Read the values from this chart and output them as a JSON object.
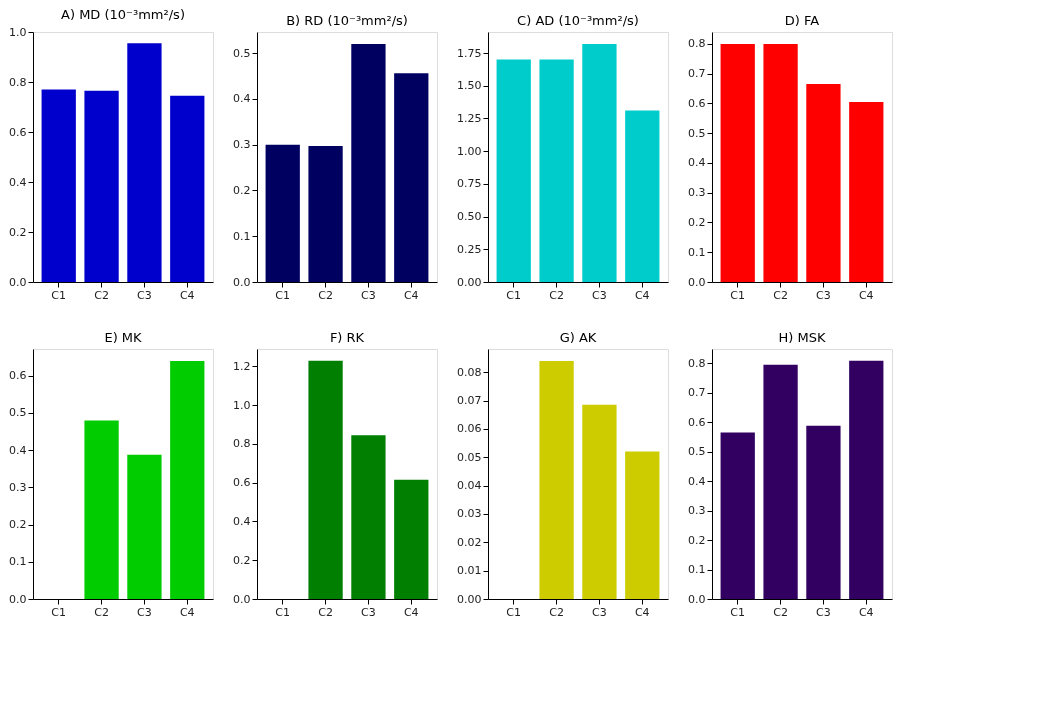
{
  "chart_data": [
    {
      "type": "bar",
      "title": "A) MD (10⁻³mm²/s)",
      "categories": [
        "C1",
        "C2",
        "C3",
        "C4"
      ],
      "values": [
        0.77,
        0.765,
        0.955,
        0.745
      ],
      "color": "#0000cc",
      "ylim": [
        0,
        1.0
      ],
      "yticks": [
        {
          "value": 0,
          "label": "0.0"
        },
        0.2,
        0.4,
        0.6,
        0.8,
        {
          "value": 1,
          "label": "1.0"
        }
      ]
    },
    {
      "type": "bar",
      "title": "B) RD (10⁻³mm²/s)",
      "categories": [
        "C1",
        "C2",
        "C3",
        "C4"
      ],
      "values": [
        0.3,
        0.297,
        0.52,
        0.456
      ],
      "color": "#000060",
      "ylim": [
        0,
        0.546
      ],
      "yticks": [
        {
          "value": 0,
          "label": "0.0"
        },
        0.1,
        0.2,
        0.3,
        0.4,
        0.5
      ]
    },
    {
      "type": "bar",
      "title": "C) AD (10⁻³mm²/s)",
      "categories": [
        "C1",
        "C2",
        "C3",
        "C4"
      ],
      "values": [
        1.7,
        1.7,
        1.82,
        1.31
      ],
      "color": "#00cccc",
      "ylim": [
        0,
        1.911
      ],
      "yticks": [
        {
          "value": 0,
          "label": "0.00"
        },
        0.25,
        {
          "value": 0.5,
          "label": "0.50"
        },
        0.75,
        {
          "value": 1,
          "label": "1.00"
        },
        1.25,
        {
          "value": 1.5,
          "label": "1.50"
        },
        1.75
      ]
    },
    {
      "type": "bar",
      "title": "D) FA",
      "categories": [
        "C1",
        "C2",
        "C3",
        "C4"
      ],
      "values": [
        0.8,
        0.8,
        0.665,
        0.605
      ],
      "color": "#ff0000",
      "ylim": [
        0,
        0.84
      ],
      "yticks": [
        {
          "value": 0,
          "label": "0.0"
        },
        0.1,
        0.2,
        0.3,
        0.4,
        0.5,
        0.6,
        0.7,
        0.8
      ]
    },
    {
      "type": "bar",
      "title": "E) MK",
      "categories": [
        "C1",
        "C2",
        "C3",
        "C4"
      ],
      "values": [
        null,
        0.48,
        0.388,
        0.64
      ],
      "color": "#00cc00",
      "ylim": [
        0,
        0.672
      ],
      "yticks": [
        {
          "value": 0,
          "label": "0.0"
        },
        0.1,
        0.2,
        0.3,
        0.4,
        0.5,
        0.6
      ]
    },
    {
      "type": "bar",
      "title": "F) RK",
      "categories": [
        "C1",
        "C2",
        "C3",
        "C4"
      ],
      "values": [
        null,
        1.23,
        0.845,
        0.615
      ],
      "color": "#007f00",
      "ylim": [
        0,
        1.29
      ],
      "yticks": [
        {
          "value": 0,
          "label": "0.0"
        },
        0.2,
        0.4,
        0.6,
        0.8,
        {
          "value": 1,
          "label": "1.0"
        },
        1.2
      ]
    },
    {
      "type": "bar",
      "title": "G) AK",
      "categories": [
        "C1",
        "C2",
        "C3",
        "C4"
      ],
      "values": [
        null,
        0.084,
        0.0685,
        0.052
      ],
      "color": "#cccc00",
      "ylim": [
        0,
        0.0882
      ],
      "yticks": [
        {
          "value": 0,
          "label": "0.00"
        },
        0.01,
        0.02,
        0.03,
        0.04,
        0.05,
        0.06,
        0.07,
        0.08
      ]
    },
    {
      "type": "bar",
      "title": "H) MSK",
      "categories": [
        "C1",
        "C2",
        "C3",
        "C4"
      ],
      "values": [
        0.565,
        0.795,
        0.588,
        0.808
      ],
      "color": "#320060",
      "ylim": [
        0,
        0.848
      ],
      "yticks": [
        {
          "value": 0,
          "label": "0.0"
        },
        0.1,
        0.2,
        0.3,
        0.4,
        0.5,
        0.6,
        0.7,
        0.8
      ]
    }
  ]
}
